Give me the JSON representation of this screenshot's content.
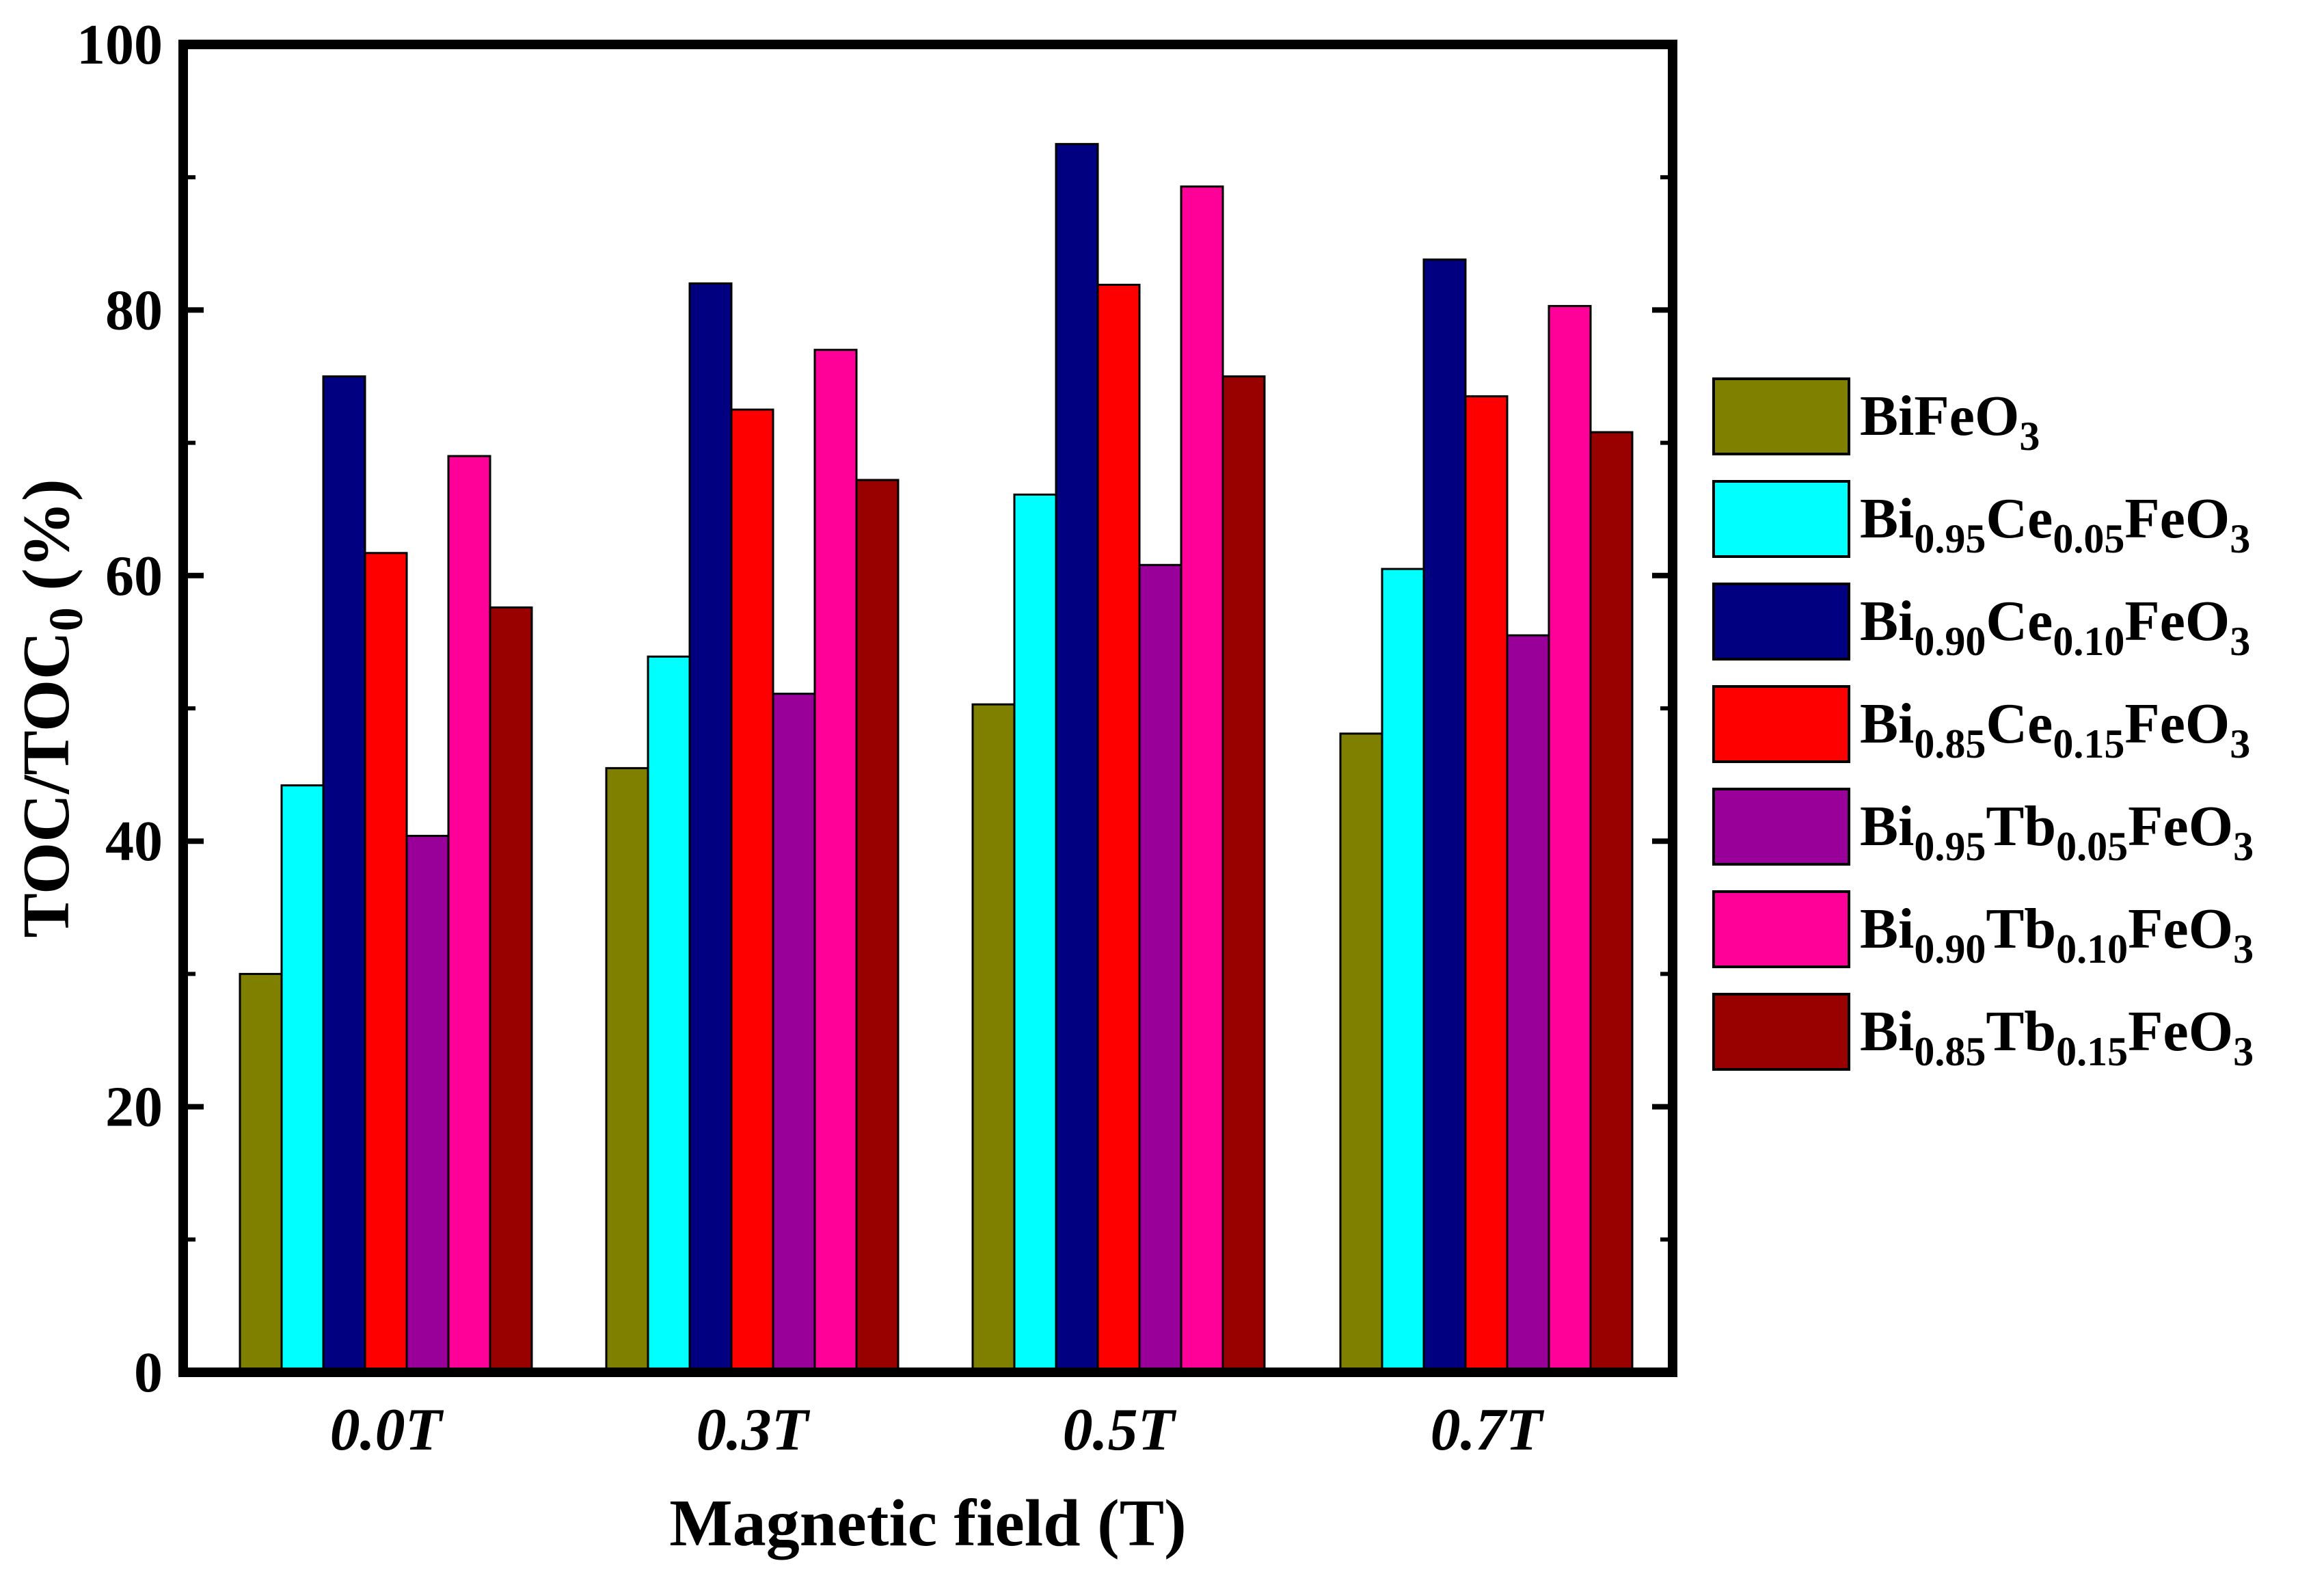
{
  "chart_data": {
    "type": "bar",
    "title": "",
    "xlabel": "Magnetic field (T)",
    "ylabel": {
      "main": "TOC/TOC",
      "sub": "0",
      "tail": " (%)"
    },
    "ylim": [
      0,
      100
    ],
    "yticks": [
      "0",
      "20",
      "40",
      "60",
      "80",
      "100"
    ],
    "categories": [
      "0.0T",
      "0.3T",
      "0.5T",
      "0.7T"
    ],
    "legend_position": "right",
    "series": [
      {
        "name": "BiFeO3",
        "label_parts": [
          [
            "Bi",
            ""
          ],
          [
            "Fe",
            ""
          ],
          [
            "O",
            "3"
          ]
        ],
        "color": "#808000",
        "values": [
          30.0,
          45.5,
          50.3,
          48.1
        ]
      },
      {
        "name": "Bi0.95Ce0.05FeO3",
        "label_parts": [
          [
            "Bi",
            "0.95"
          ],
          [
            "Ce",
            "0.05"
          ],
          [
            "FeO",
            "3"
          ]
        ],
        "color": "#00FFFF",
        "values": [
          44.2,
          53.9,
          66.1,
          60.5
        ]
      },
      {
        "name": "Bi0.90Ce0.10FeO3",
        "label_parts": [
          [
            "Bi",
            "0.90"
          ],
          [
            "Ce",
            "0.10"
          ],
          [
            "FeO",
            "3"
          ]
        ],
        "color": "#000080",
        "values": [
          75.0,
          82.0,
          92.5,
          83.8
        ]
      },
      {
        "name": "Bi0.85Ce0.15FeO3",
        "label_parts": [
          [
            "Bi",
            "0.85"
          ],
          [
            "Ce",
            "0.15"
          ],
          [
            "FeO",
            "3"
          ]
        ],
        "color": "#FF0000",
        "values": [
          61.7,
          72.5,
          81.9,
          73.5
        ]
      },
      {
        "name": "Bi0.95Tb0.05FeO3",
        "label_parts": [
          [
            "Bi",
            "0.95"
          ],
          [
            "Tb",
            "0.05"
          ],
          [
            "FeO",
            "3"
          ]
        ],
        "color": "#990099",
        "values": [
          40.4,
          51.1,
          60.8,
          55.5
        ]
      },
      {
        "name": "Bi0.90Tb0.10FeO3",
        "label_parts": [
          [
            "Bi",
            "0.90"
          ],
          [
            "Tb",
            "0.10"
          ],
          [
            "FeO",
            "3"
          ]
        ],
        "color": "#FF0099",
        "values": [
          69.0,
          77.0,
          89.3,
          80.3
        ]
      },
      {
        "name": "Bi0.85Tb0.15FeO3",
        "label_parts": [
          [
            "Bi",
            "0.85"
          ],
          [
            "Tb",
            "0.15"
          ],
          [
            "FeO",
            "3"
          ]
        ],
        "color": "#990000",
        "values": [
          57.6,
          67.2,
          75.0,
          70.8
        ]
      }
    ]
  }
}
